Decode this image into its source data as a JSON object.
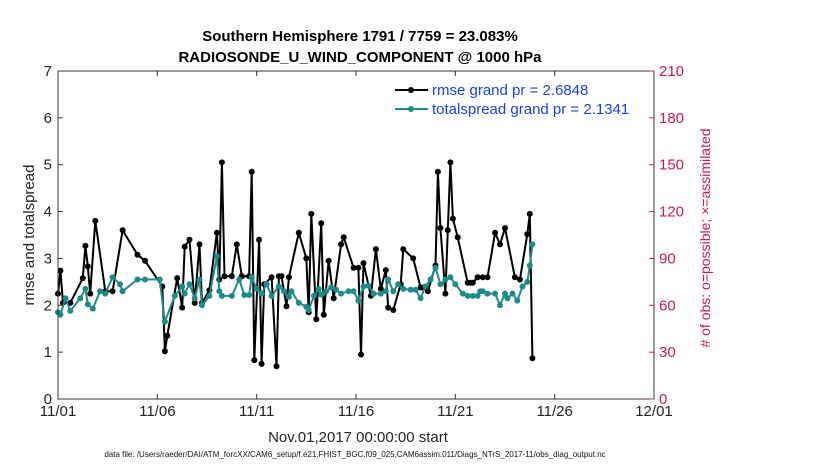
{
  "chart_data": {
    "type": "line",
    "title": "Southern Hemisphere 1791 / 7759 = 23.083%",
    "subtitle": "RADIOSONDE_U_WIND_COMPONENT @ 1000 hPa",
    "xlabel": "Nov.01,2017 00:00:00 start",
    "ylabel": "rmse and totalspread",
    "ylabel_right": "# of obs: o=possible; ×=assimilated",
    "footer": "data file: /Users/raeder/DAI/ATM_forcXX/CAM6_setup/f.e21.FHIST_BGC.f09_025.CAM6assim.011/Diags_NTrS_2017-11/obs_diag_output.nc",
    "xlim": [
      0,
      30
    ],
    "ylim": [
      0,
      7
    ],
    "ylim_right": [
      0,
      210
    ],
    "x_ticks": [
      0,
      5,
      10,
      15,
      20,
      25,
      30
    ],
    "x_tick_labels": [
      "11/01",
      "11/06",
      "11/11",
      "11/16",
      "11/21",
      "11/26",
      "12/01"
    ],
    "y_ticks": [
      0,
      1,
      2,
      3,
      4,
      5,
      6,
      7
    ],
    "y_ticks_right": [
      0,
      30,
      60,
      90,
      120,
      150,
      180,
      210
    ],
    "grid": false,
    "legend_position": "top-right",
    "series": [
      {
        "name": "rmse grand pr = 2.6848",
        "color": "#000000",
        "points": [
          [
            0.0,
            2.25
          ],
          [
            0.12,
            2.74
          ],
          [
            0.25,
            2.05
          ],
          [
            0.62,
            2.05
          ],
          [
            1.25,
            2.58
          ],
          [
            1.38,
            3.27
          ],
          [
            1.5,
            2.83
          ],
          [
            1.62,
            2.25
          ],
          [
            1.88,
            3.8
          ],
          [
            2.38,
            2.3
          ],
          [
            2.75,
            2.3
          ],
          [
            3.25,
            3.6
          ],
          [
            4.0,
            3.08
          ],
          [
            4.38,
            2.95
          ],
          [
            5.25,
            2.4
          ],
          [
            5.38,
            1.02
          ],
          [
            5.5,
            1.35
          ],
          [
            6.0,
            2.58
          ],
          [
            6.25,
            1.95
          ],
          [
            6.38,
            3.25
          ],
          [
            6.62,
            3.4
          ],
          [
            6.88,
            2.05
          ],
          [
            7.12,
            3.3
          ],
          [
            7.25,
            2.05
          ],
          [
            7.62,
            2.32
          ],
          [
            8.0,
            3.55
          ],
          [
            8.12,
            2.55
          ],
          [
            8.25,
            5.05
          ],
          [
            8.38,
            2.62
          ],
          [
            8.75,
            2.62
          ],
          [
            9.0,
            3.3
          ],
          [
            9.25,
            2.62
          ],
          [
            9.62,
            2.62
          ],
          [
            9.75,
            4.85
          ],
          [
            9.88,
            0.83
          ],
          [
            10.12,
            3.4
          ],
          [
            10.25,
            0.75
          ],
          [
            10.38,
            2.45
          ],
          [
            10.75,
            2.6
          ],
          [
            11.0,
            0.7
          ],
          [
            11.12,
            2.62
          ],
          [
            11.25,
            2.62
          ],
          [
            11.5,
            1.98
          ],
          [
            11.62,
            2.6
          ],
          [
            12.12,
            3.55
          ],
          [
            12.5,
            3.0
          ],
          [
            12.62,
            1.85
          ],
          [
            12.75,
            3.95
          ],
          [
            13.0,
            1.7
          ],
          [
            13.25,
            3.75
          ],
          [
            13.38,
            1.8
          ],
          [
            13.62,
            2.95
          ],
          [
            13.88,
            2.15
          ],
          [
            14.25,
            3.3
          ],
          [
            14.38,
            3.45
          ],
          [
            14.88,
            2.8
          ],
          [
            15.12,
            2.8
          ],
          [
            15.25,
            0.95
          ],
          [
            15.38,
            2.9
          ],
          [
            15.75,
            2.2
          ],
          [
            16.0,
            3.2
          ],
          [
            16.25,
            2.35
          ],
          [
            16.5,
            2.75
          ],
          [
            16.62,
            1.95
          ],
          [
            16.88,
            1.9
          ],
          [
            17.25,
            2.45
          ],
          [
            17.38,
            3.2
          ],
          [
            17.88,
            3.0
          ],
          [
            18.25,
            2.38
          ],
          [
            18.38,
            2.38
          ],
          [
            18.62,
            2.3
          ],
          [
            19.0,
            2.85
          ],
          [
            19.12,
            4.85
          ],
          [
            19.25,
            3.65
          ],
          [
            19.5,
            2.25
          ],
          [
            19.62,
            3.6
          ],
          [
            19.75,
            5.05
          ],
          [
            19.88,
            3.85
          ],
          [
            20.12,
            3.45
          ],
          [
            20.62,
            2.48
          ],
          [
            20.75,
            2.48
          ],
          [
            20.88,
            2.48
          ],
          [
            21.12,
            2.6
          ],
          [
            21.38,
            2.6
          ],
          [
            21.62,
            2.6
          ],
          [
            22.0,
            3.55
          ],
          [
            22.25,
            3.3
          ],
          [
            22.5,
            3.65
          ],
          [
            23.0,
            2.6
          ],
          [
            23.25,
            2.55
          ],
          [
            23.62,
            3.52
          ],
          [
            23.75,
            3.95
          ],
          [
            23.88,
            0.87
          ]
        ]
      },
      {
        "name": "totalspread grand pr = 2.1341",
        "color": "#1f8a8a",
        "points": [
          [
            0.0,
            1.85
          ],
          [
            0.12,
            1.8
          ],
          [
            0.38,
            2.15
          ],
          [
            0.62,
            1.88
          ],
          [
            1.12,
            2.15
          ],
          [
            1.38,
            2.35
          ],
          [
            1.5,
            2.02
          ],
          [
            1.75,
            1.93
          ],
          [
            2.12,
            2.3
          ],
          [
            2.38,
            2.25
          ],
          [
            2.75,
            2.6
          ],
          [
            3.12,
            2.45
          ],
          [
            3.25,
            2.3
          ],
          [
            4.0,
            2.55
          ],
          [
            4.38,
            2.55
          ],
          [
            5.12,
            2.55
          ],
          [
            5.38,
            1.65
          ],
          [
            5.88,
            2.2
          ],
          [
            6.25,
            2.4
          ],
          [
            6.38,
            2.25
          ],
          [
            6.62,
            2.45
          ],
          [
            6.88,
            2.15
          ],
          [
            7.12,
            2.55
          ],
          [
            7.25,
            2.0
          ],
          [
            7.62,
            2.2
          ],
          [
            8.0,
            3.05
          ],
          [
            8.12,
            2.3
          ],
          [
            8.25,
            2.2
          ],
          [
            8.75,
            2.2
          ],
          [
            9.12,
            2.55
          ],
          [
            9.38,
            2.22
          ],
          [
            9.62,
            2.22
          ],
          [
            9.75,
            2.6
          ],
          [
            10.0,
            2.35
          ],
          [
            10.25,
            2.25
          ],
          [
            10.5,
            2.45
          ],
          [
            10.75,
            2.2
          ],
          [
            11.12,
            2.4
          ],
          [
            11.38,
            2.3
          ],
          [
            11.62,
            2.18
          ],
          [
            11.75,
            2.3
          ],
          [
            12.12,
            2.05
          ],
          [
            12.5,
            1.97
          ],
          [
            12.62,
            1.9
          ],
          [
            12.88,
            2.2
          ],
          [
            13.12,
            2.35
          ],
          [
            13.25,
            2.23
          ],
          [
            13.5,
            2.3
          ],
          [
            13.75,
            2.38
          ],
          [
            14.0,
            2.33
          ],
          [
            14.25,
            2.25
          ],
          [
            14.62,
            2.3
          ],
          [
            14.88,
            2.3
          ],
          [
            15.12,
            2.1
          ],
          [
            15.38,
            2.4
          ],
          [
            15.62,
            2.42
          ],
          [
            15.88,
            2.25
          ],
          [
            16.25,
            2.25
          ],
          [
            16.5,
            2.3
          ],
          [
            16.62,
            2.55
          ],
          [
            16.88,
            2.3
          ],
          [
            17.12,
            2.45
          ],
          [
            17.38,
            2.35
          ],
          [
            17.75,
            2.33
          ],
          [
            18.0,
            2.33
          ],
          [
            18.25,
            2.15
          ],
          [
            18.5,
            2.4
          ],
          [
            18.75,
            2.55
          ],
          [
            19.0,
            2.8
          ],
          [
            19.25,
            2.45
          ],
          [
            19.5,
            2.55
          ],
          [
            19.75,
            2.6
          ],
          [
            20.0,
            2.45
          ],
          [
            20.38,
            2.25
          ],
          [
            20.62,
            2.2
          ],
          [
            20.88,
            2.2
          ],
          [
            21.12,
            2.2
          ],
          [
            21.25,
            2.3
          ],
          [
            21.38,
            2.3
          ],
          [
            21.62,
            2.25
          ],
          [
            22.0,
            2.25
          ],
          [
            22.25,
            2.0
          ],
          [
            22.5,
            2.25
          ],
          [
            22.62,
            2.15
          ],
          [
            22.88,
            2.25
          ],
          [
            23.12,
            2.1
          ],
          [
            23.38,
            2.4
          ],
          [
            23.62,
            2.5
          ],
          [
            23.75,
            2.85
          ],
          [
            23.88,
            3.3
          ]
        ]
      }
    ]
  }
}
